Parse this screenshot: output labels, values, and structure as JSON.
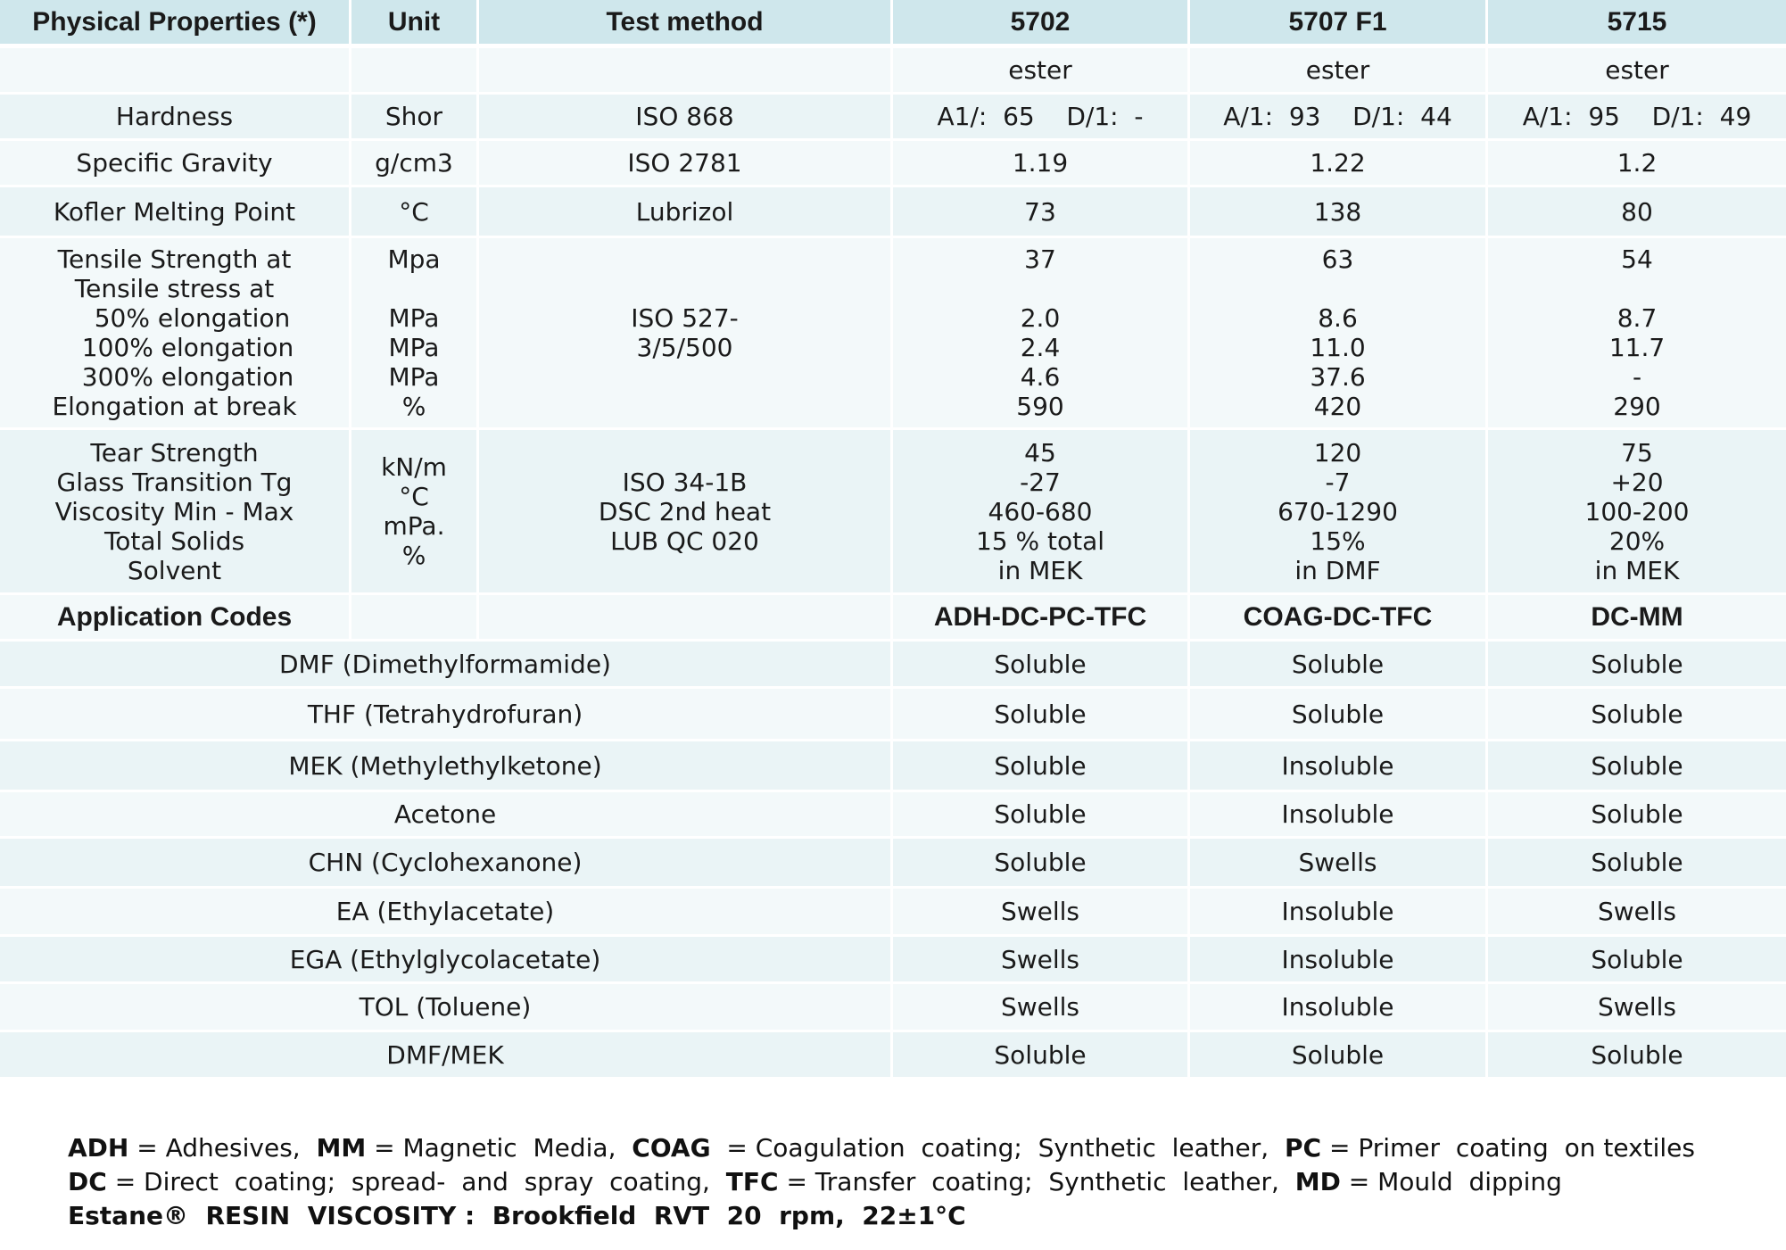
{
  "header": {
    "cells": [
      "Physical Properties (*)",
      "Unit",
      "Test method",
      "5702",
      "5707 F1",
      "5715"
    ]
  },
  "type_row": [
    "",
    "",
    "",
    "ester",
    "ester",
    "ester"
  ],
  "rows": [
    {
      "cells": [
        "Hardness",
        "Shor",
        "ISO 868",
        "A1/:  65    D/1:  -",
        "A/1:  93    D/1:  44",
        "A/1:  95    D/1:  49"
      ]
    },
    {
      "cells": [
        "Specific  Gravity",
        "g/cm3",
        "ISO  2781",
        "1.19",
        "1.22",
        "1.2"
      ]
    },
    {
      "cells": [
        "Kofler  Melting  Point",
        "°C",
        "Lubrizol",
        "73",
        "138",
        "80"
      ]
    }
  ],
  "tensile_block": {
    "properties": [
      "Tensile Strength at",
      "Tensile stress at",
      "50%  elongation",
      "100%  elongation",
      "300%  elongation",
      "Elongation at break"
    ],
    "units": [
      "Mpa",
      "",
      "MPa",
      "MPa",
      "MPa",
      "%"
    ],
    "method": [
      "ISO  527-",
      "3/5/500"
    ],
    "c5702": [
      "37",
      "",
      "2.0",
      "2.4",
      "4.6",
      "590"
    ],
    "c5707": [
      "63",
      "",
      "8.6",
      "11.0",
      "37.6",
      "420"
    ],
    "c5715": [
      "54",
      "",
      "8.7",
      "11.7",
      "-",
      "290"
    ]
  },
  "tear_block": {
    "properties": [
      "Tear Strength",
      "Glass Transition Tg",
      "Viscosity Min - Max",
      "Total Solids",
      "Solvent"
    ],
    "units": [
      "kN/m",
      "°C",
      "mPa.",
      "%",
      ""
    ],
    "methods": [
      "ISO  34-1B",
      "DSC  2nd  heat",
      "LUB QC  020"
    ],
    "c5702": [
      "45",
      "-27",
      "460-680",
      "15 % total",
      "in MEK"
    ],
    "c5707": [
      "120",
      "-7",
      "670-1290",
      "15%",
      "in DMF"
    ],
    "c5715": [
      "75",
      "+20",
      "100-200",
      "20%",
      "in MEK"
    ]
  },
  "app_codes": {
    "label": "Application Codes",
    "values": [
      "ADH-DC-PC-TFC",
      "COAG-DC-TFC",
      "DC-MM"
    ]
  },
  "solvents": [
    {
      "name": "DMF  (Dimethylformamide)",
      "values": [
        "Soluble",
        "Soluble",
        "Soluble"
      ]
    },
    {
      "name": "THF  (Tetrahydrofuran)",
      "values": [
        "Soluble",
        "Soluble",
        "Soluble"
      ]
    },
    {
      "name": "MEK  (Methylethylketone)",
      "values": [
        "Soluble",
        "Insoluble",
        "Soluble"
      ]
    },
    {
      "name": "Acetone",
      "values": [
        "Soluble",
        "Insoluble",
        "Soluble"
      ]
    },
    {
      "name": "CHN  (Cyclohexanone)",
      "values": [
        "Soluble",
        "Swells",
        "Soluble"
      ]
    },
    {
      "name": "EA  (Ethylacetate)",
      "values": [
        "Swells",
        "Insoluble",
        "Swells"
      ]
    },
    {
      "name": "EGA  (Ethylglycolacetate)",
      "values": [
        "Swells",
        "Insoluble",
        "Soluble"
      ]
    },
    {
      "name": "TOL  (Toluene)",
      "values": [
        "Swells",
        "Insoluble",
        "Swells"
      ]
    },
    {
      "name": "DMF/MEK",
      "values": [
        "Soluble",
        "Soluble",
        "Soluble"
      ]
    }
  ],
  "footer": {
    "line1": [
      {
        "code": "ADH",
        "desc": " = Adhesives,  "
      },
      {
        "code": "MM",
        "desc": " = Magnetic  Media,  "
      },
      {
        "code": "COAG",
        "desc": "  = Coagulation  coating;  Synthetic  leather,  "
      },
      {
        "code": "PC",
        "desc": " = Primer  coating  on textiles"
      }
    ],
    "line2": [
      {
        "code": "DC",
        "desc": " = Direct  coating;  spread-  and  spray  coating,  "
      },
      {
        "code": "TFC",
        "desc": " = Transfer  coating;  Synthetic  leather,  "
      },
      {
        "code": "MD",
        "desc": " = Mould  dipping"
      }
    ],
    "line3": "Estane®  RESIN  VISCOSITY :  Brookfield  RVT  20  rpm,  22±1°C"
  }
}
